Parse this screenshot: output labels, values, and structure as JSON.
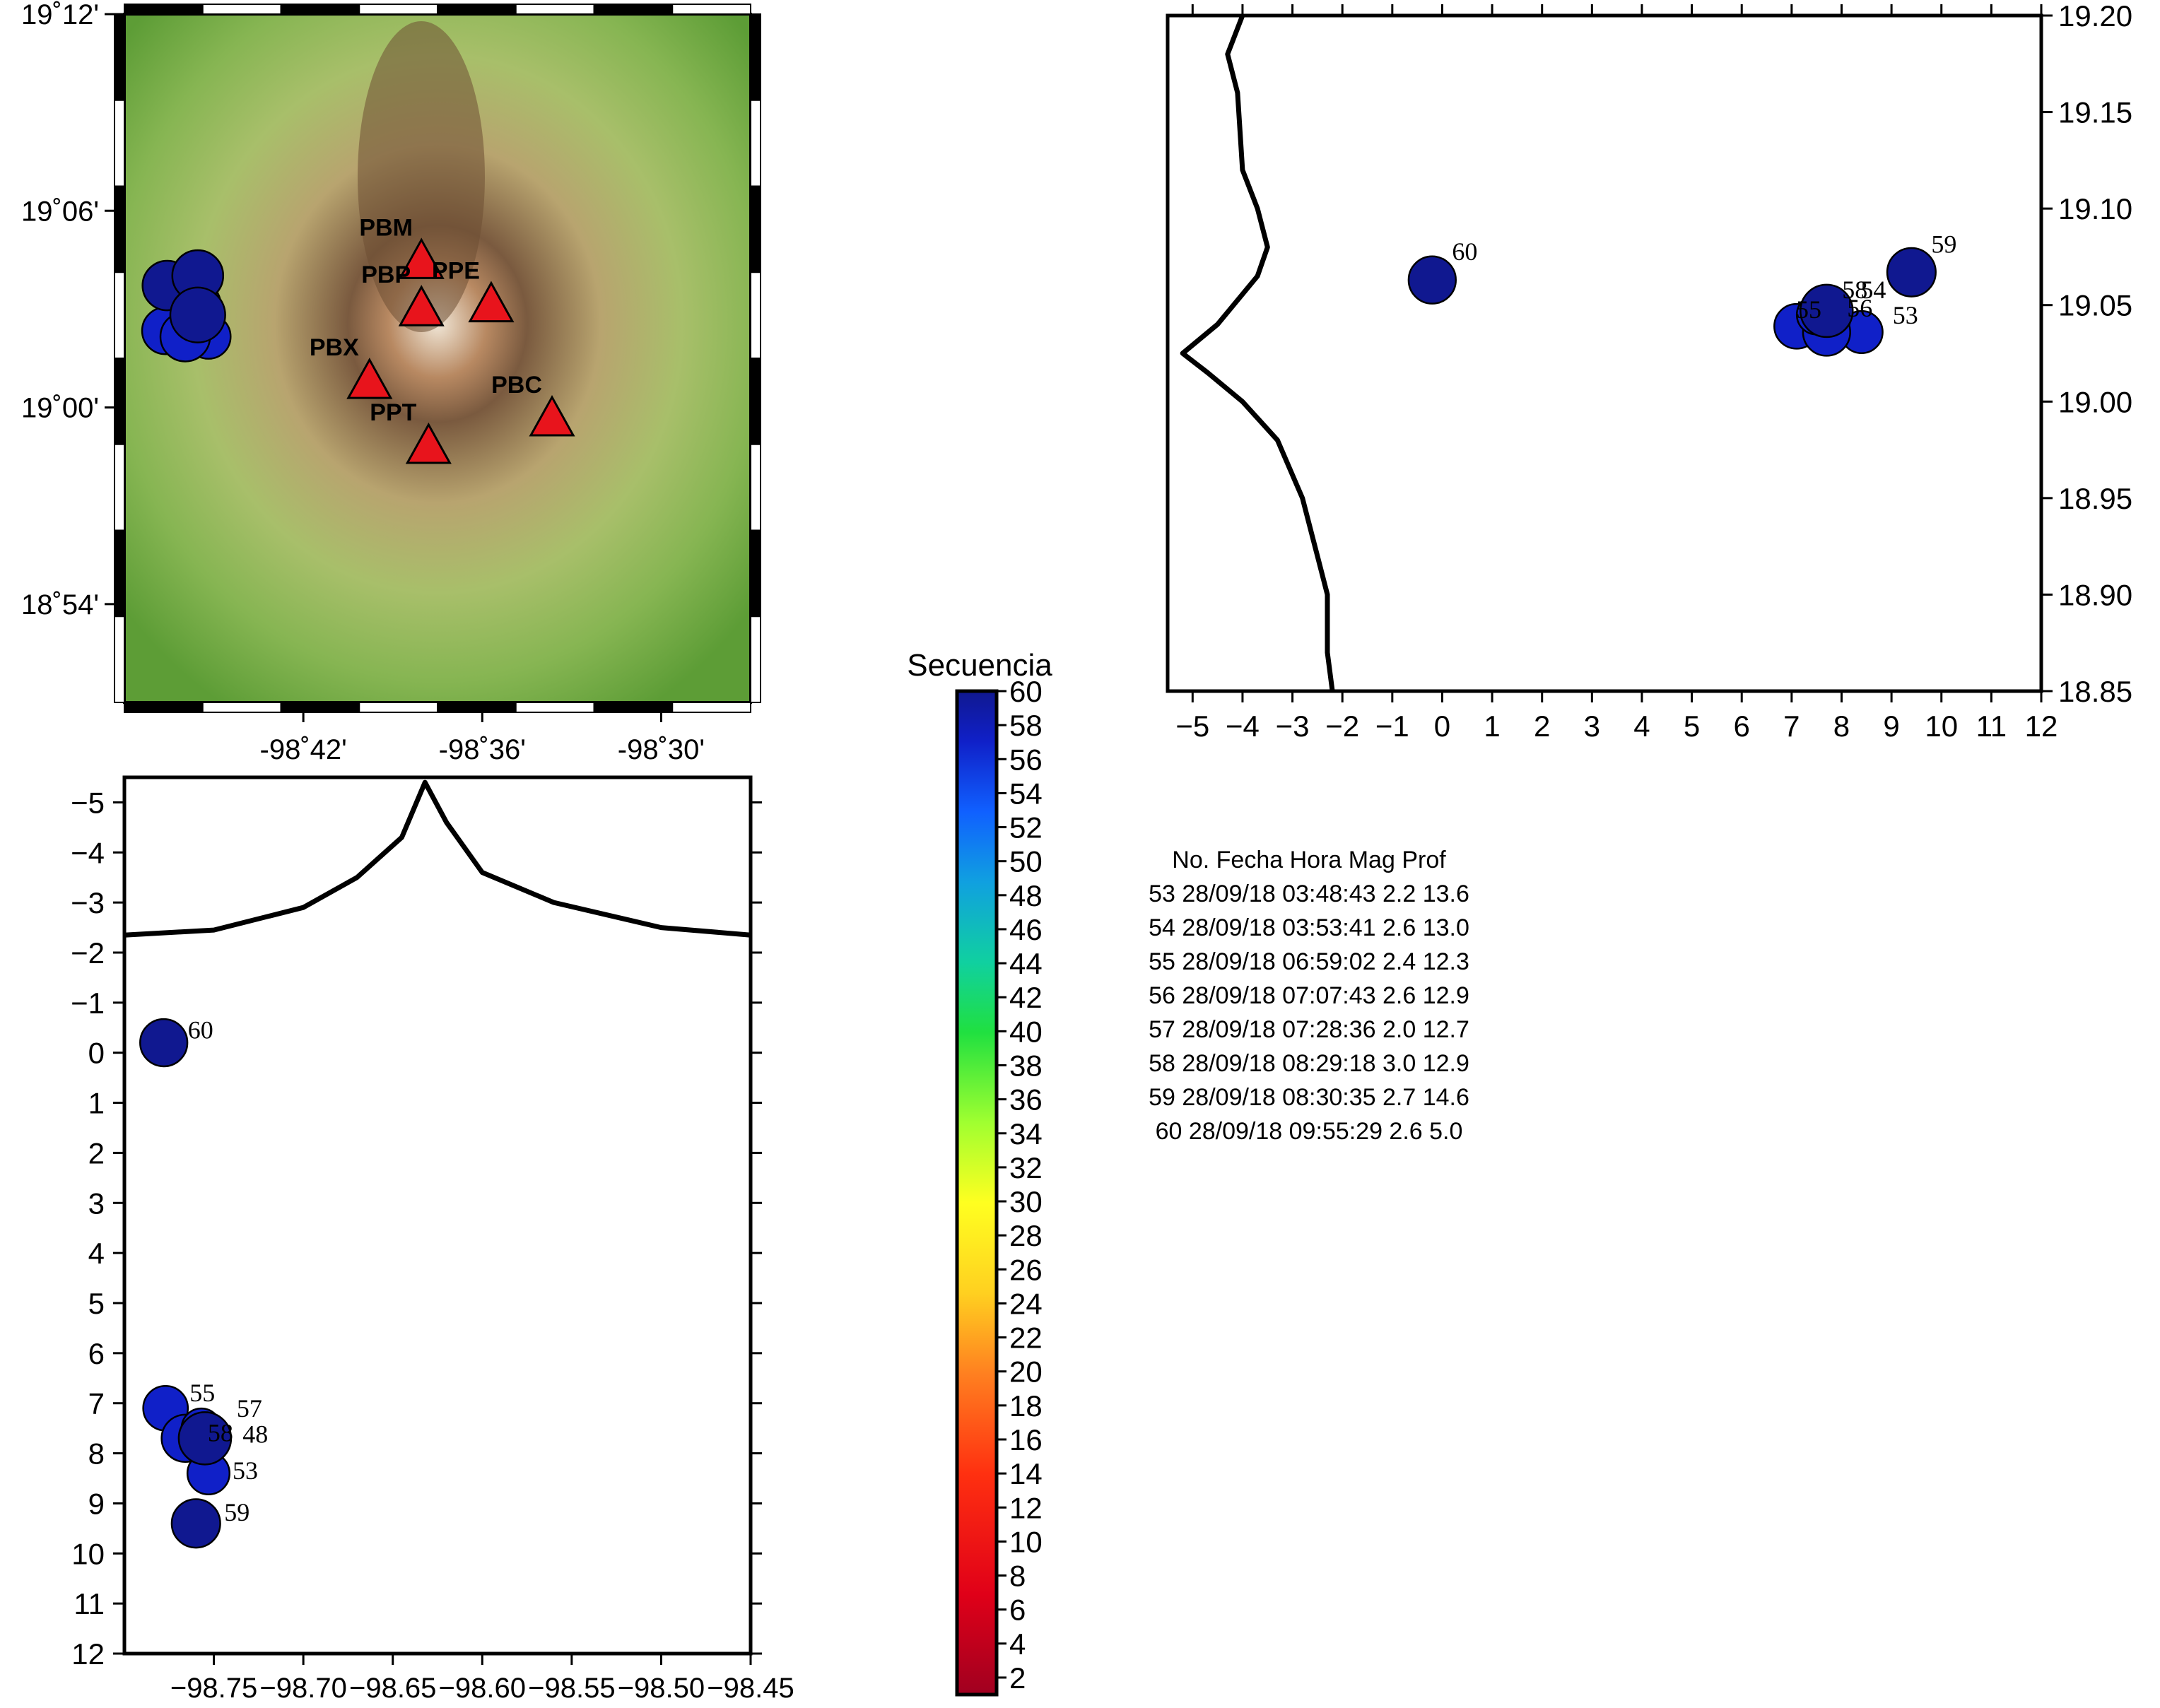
{
  "chart_data": [
    {
      "type": "scatter",
      "panel": "map",
      "xlim_deg": [
        -98.8,
        -98.45
      ],
      "ylim_deg": [
        18.85,
        19.2
      ],
      "x_ticks": [
        "-98˚42'",
        "-98˚36'",
        "-98˚30'"
      ],
      "y_ticks": [
        "19˚12'",
        "19˚06'",
        "19˚00'",
        "18˚54'"
      ],
      "stations": [
        {
          "name": "PBM",
          "lon": -98.634,
          "lat": 19.073
        },
        {
          "name": "PPE",
          "lon": -98.595,
          "lat": 19.051
        },
        {
          "name": "PBP",
          "lon": -98.634,
          "lat": 19.049
        },
        {
          "name": "PBX",
          "lon": -98.663,
          "lat": 19.012
        },
        {
          "name": "PBC",
          "lon": -98.561,
          "lat": 18.993
        },
        {
          "name": "PPT",
          "lon": -98.63,
          "lat": 18.979
        }
      ],
      "events": [
        {
          "no": 53,
          "lon": -98.753,
          "lat": 19.036,
          "mag": 2.2
        },
        {
          "no": 54,
          "lon": -98.76,
          "lat": 19.052,
          "mag": 2.6
        },
        {
          "no": 55,
          "lon": -98.777,
          "lat": 19.039,
          "mag": 2.4
        },
        {
          "no": 56,
          "lon": -98.766,
          "lat": 19.036,
          "mag": 2.6
        },
        {
          "no": 57,
          "lon": -98.76,
          "lat": 19.045,
          "mag": 2.0
        },
        {
          "no": 58,
          "lon": -98.759,
          "lat": 19.047,
          "mag": 3.0
        },
        {
          "no": 59,
          "lon": -98.759,
          "lat": 19.067,
          "mag": 2.7
        },
        {
          "no": 60,
          "lon": -98.776,
          "lat": 19.062,
          "mag": 2.6
        }
      ]
    },
    {
      "type": "scatter",
      "panel": "depth-latitude",
      "xlim": [
        -5.5,
        12
      ],
      "ylim": [
        18.85,
        19.2
      ],
      "x_ticks": [
        "−5",
        "−4",
        "−3",
        "−2",
        "−1",
        "0",
        "1",
        "2",
        "3",
        "4",
        "5",
        "6",
        "7",
        "8",
        "9",
        "10",
        "11",
        "12"
      ],
      "y_ticks": [
        "19.20",
        "19.15",
        "19.10",
        "19.05",
        "19.00",
        "18.95",
        "18.90",
        "18.85"
      ],
      "topo_profile": [
        [
          -4,
          19.2
        ],
        [
          -4.3,
          19.18
        ],
        [
          -4.1,
          19.16
        ],
        [
          -4.0,
          19.12
        ],
        [
          -3.7,
          19.1
        ],
        [
          -3.5,
          19.08
        ],
        [
          -3.7,
          19.065
        ],
        [
          -4.5,
          19.04
        ],
        [
          -5.2,
          19.025
        ],
        [
          -4.7,
          19.015
        ],
        [
          -4.0,
          19.0
        ],
        [
          -3.3,
          18.98
        ],
        [
          -2.8,
          18.95
        ],
        [
          -2.5,
          18.92
        ],
        [
          -2.3,
          18.9
        ],
        [
          -2.3,
          18.87
        ],
        [
          -2.2,
          18.85
        ]
      ],
      "points": [
        {
          "no": 53,
          "depth": 8.4,
          "lat": 19.036
        },
        {
          "no": 54,
          "depth": 7.7,
          "lat": 19.043
        },
        {
          "no": 55,
          "depth": 7.1,
          "lat": 19.039
        },
        {
          "no": 56,
          "depth": 7.7,
          "lat": 19.036
        },
        {
          "no": 57,
          "depth": 7.5,
          "lat": 19.045
        },
        {
          "no": 58,
          "depth": 7.7,
          "lat": 19.047
        },
        {
          "no": 59,
          "depth": 9.4,
          "lat": 19.067
        },
        {
          "no": 60,
          "depth": -0.2,
          "lat": 19.063
        }
      ],
      "labels": [
        "60",
        "59",
        "58",
        "54",
        "55",
        "56",
        "53"
      ]
    },
    {
      "type": "scatter",
      "panel": "longitude-depth",
      "xlim": [
        -98.8,
        -98.45
      ],
      "ylim": [
        -5.5,
        12
      ],
      "x_ticks": [
        "−98.75",
        "−98.70",
        "−98.65",
        "−98.60",
        "−98.55",
        "−98.50",
        "−98.45"
      ],
      "y_ticks": [
        "−5",
        "−4",
        "−3",
        "−2",
        "−1",
        "0",
        "1",
        "2",
        "3",
        "4",
        "5",
        "6",
        "7",
        "8",
        "9",
        "10",
        "11",
        "12"
      ],
      "topo_profile": [
        [
          -98.8,
          -2.35
        ],
        [
          -98.75,
          -2.45
        ],
        [
          -98.7,
          -2.9
        ],
        [
          -98.67,
          -3.5
        ],
        [
          -98.645,
          -4.3
        ],
        [
          -98.632,
          -5.4
        ],
        [
          -98.62,
          -4.6
        ],
        [
          -98.6,
          -3.6
        ],
        [
          -98.56,
          -3.0
        ],
        [
          -98.5,
          -2.5
        ],
        [
          -98.45,
          -2.35
        ]
      ],
      "points": [
        {
          "no": 53,
          "lon": -98.753,
          "depth": 8.4
        },
        {
          "no": 54,
          "lon": -98.755,
          "depth": 7.7
        },
        {
          "no": 55,
          "lon": -98.777,
          "depth": 7.1
        },
        {
          "no": 56,
          "lon": -98.766,
          "depth": 7.7
        },
        {
          "no": 57,
          "lon": -98.757,
          "depth": 7.5
        },
        {
          "no": 58,
          "lon": -98.755,
          "depth": 7.7
        },
        {
          "no": 59,
          "lon": -98.76,
          "depth": 9.4
        },
        {
          "no": 60,
          "lon": -98.778,
          "depth": -0.2
        }
      ],
      "labels": [
        "60",
        "55",
        "57",
        "58",
        "48",
        "53",
        "59"
      ]
    }
  ],
  "colorbar": {
    "title": "Secuencia",
    "min": 1,
    "max": 60,
    "ticks": [
      "60",
      "58",
      "56",
      "54",
      "52",
      "50",
      "48",
      "46",
      "44",
      "42",
      "40",
      "38",
      "36",
      "34",
      "32",
      "30",
      "28",
      "26",
      "24",
      "22",
      "20",
      "18",
      "16",
      "14",
      "12",
      "10",
      "8",
      "6",
      "4",
      "2"
    ],
    "colors": [
      "#a00020",
      "#e00018",
      "#ff3010",
      "#ff8020",
      "#ffd020",
      "#ffff20",
      "#a0ff30",
      "#20e040",
      "#10d0a0",
      "#10a0e0",
      "#1060ff",
      "#1020c8",
      "#101890"
    ]
  },
  "event_table": {
    "header": "No. Fecha Hora Mag Prof",
    "rows": [
      "53 28/09/18 03:48:43 2.2 13.6",
      "54 28/09/18 03:53:41 2.6 13.0",
      "55 28/09/18 06:59:02 2.4 12.3",
      "56 28/09/18 07:07:43 2.6 12.9",
      "57 28/09/18 07:28:36 2.0 12.7",
      "58 28/09/18 08:29:18 3.0 12.9",
      "59 28/09/18 08:30:35 2.7 14.6",
      "60 28/09/18 09:55:29 2.6 5.0"
    ]
  }
}
